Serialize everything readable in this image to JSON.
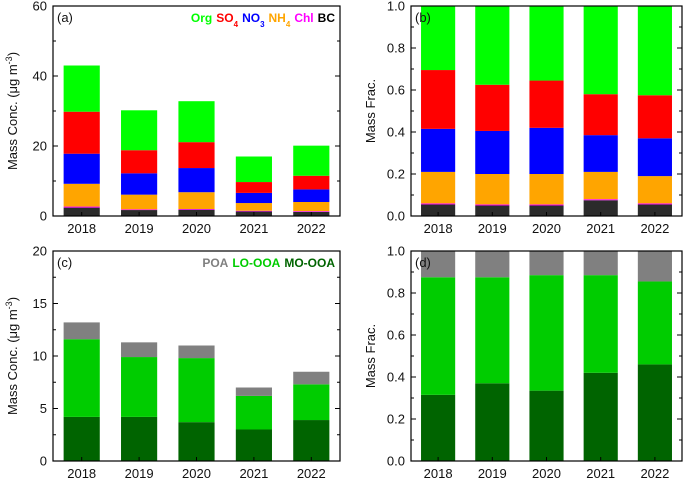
{
  "chart_data": [
    {
      "id": "a",
      "type": "bar",
      "stacked": true,
      "panel_label": "(a)",
      "categories": [
        "2018",
        "2019",
        "2020",
        "2021",
        "2022"
      ],
      "ylabel_main": "Mass Conc. (μg m",
      "ylabel_sup": "-3",
      "ylabel_end": ")",
      "ylim": [
        0,
        60
      ],
      "yticks": [
        0,
        20,
        40,
        60
      ],
      "legend_position": "top-right",
      "legend": [
        {
          "main": "Org",
          "sub": "",
          "color": "#00ff00"
        },
        {
          "main": "SO",
          "sub": "4",
          "color": "#ff0000"
        },
        {
          "main": "NO",
          "sub": "3",
          "color": "#0000ff"
        },
        {
          "main": "NH",
          "sub": "4",
          "color": "#ffa500"
        },
        {
          "main": "Chl",
          "sub": "",
          "color": "#ff00ff"
        },
        {
          "main": "BC",
          "sub": "",
          "color": "#000000"
        }
      ],
      "series": [
        {
          "color": "#2b2b2b",
          "values": [
            2.4,
            1.7,
            1.8,
            1.3,
            1.2
          ]
        },
        {
          "color": "#ff00ff",
          "values": [
            0.3,
            0.2,
            0.2,
            0.2,
            0.2
          ]
        },
        {
          "color": "#ffa500",
          "values": [
            6.5,
            4.2,
            4.8,
            2.2,
            2.6
          ]
        },
        {
          "color": "#0000ff",
          "values": [
            8.6,
            6.1,
            6.9,
            2.9,
            3.6
          ]
        },
        {
          "color": "#ff0000",
          "values": [
            12.0,
            6.6,
            7.4,
            3.1,
            3.9
          ]
        },
        {
          "color": "#00ff00",
          "values": [
            13.2,
            11.4,
            11.7,
            7.3,
            8.6
          ]
        }
      ]
    },
    {
      "id": "b",
      "type": "bar",
      "stacked": true,
      "panel_label": "(b)",
      "categories": [
        "2018",
        "2019",
        "2020",
        "2021",
        "2022"
      ],
      "ylabel_main": "Mass Frac.",
      "ylim": [
        0,
        1.0
      ],
      "yticks": [
        0.0,
        0.2,
        0.4,
        0.6,
        0.8,
        1.0
      ],
      "series": [
        {
          "color": "#2b2b2b",
          "values": [
            0.055,
            0.05,
            0.05,
            0.075,
            0.055
          ]
        },
        {
          "color": "#ff00ff",
          "values": [
            0.005,
            0.005,
            0.005,
            0.005,
            0.005
          ]
        },
        {
          "color": "#ffa500",
          "values": [
            0.15,
            0.145,
            0.145,
            0.13,
            0.13
          ]
        },
        {
          "color": "#0000ff",
          "values": [
            0.205,
            0.205,
            0.22,
            0.175,
            0.18
          ]
        },
        {
          "color": "#ff0000",
          "values": [
            0.28,
            0.22,
            0.225,
            0.195,
            0.205
          ]
        },
        {
          "color": "#00ff00",
          "values": [
            0.305,
            0.375,
            0.355,
            0.42,
            0.425
          ]
        }
      ]
    },
    {
      "id": "c",
      "type": "bar",
      "stacked": true,
      "panel_label": "(c)",
      "categories": [
        "2018",
        "2019",
        "2020",
        "2021",
        "2022"
      ],
      "ylabel_main": "Mass Conc. (μg m",
      "ylabel_sup": "-3",
      "ylabel_end": ")",
      "ylim": [
        0,
        20
      ],
      "yticks": [
        0,
        5,
        10,
        15,
        20
      ],
      "legend_position": "top-right",
      "legend": [
        {
          "main": "POA",
          "sub": "",
          "color": "#808080"
        },
        {
          "main": "LO-OOA",
          "sub": "",
          "color": "#00cc00"
        },
        {
          "main": "MO-OOA",
          "sub": "",
          "color": "#006400"
        }
      ],
      "series": [
        {
          "color": "#006400",
          "values": [
            4.2,
            4.2,
            3.7,
            3.0,
            3.9
          ]
        },
        {
          "color": "#00cc00",
          "values": [
            7.4,
            5.7,
            6.1,
            3.2,
            3.4
          ]
        },
        {
          "color": "#808080",
          "values": [
            1.6,
            1.4,
            1.2,
            0.8,
            1.2
          ]
        }
      ]
    },
    {
      "id": "d",
      "type": "bar",
      "stacked": true,
      "panel_label": "(d)",
      "categories": [
        "2018",
        "2019",
        "2020",
        "2021",
        "2022"
      ],
      "ylabel_main": "Mass Frac.",
      "ylim": [
        0,
        1.0
      ],
      "yticks": [
        0.0,
        0.2,
        0.4,
        0.6,
        0.8,
        1.0
      ],
      "series": [
        {
          "color": "#006400",
          "values": [
            0.315,
            0.37,
            0.335,
            0.42,
            0.46
          ]
        },
        {
          "color": "#00cc00",
          "values": [
            0.56,
            0.505,
            0.55,
            0.465,
            0.395
          ]
        },
        {
          "color": "#808080",
          "values": [
            0.125,
            0.125,
            0.115,
            0.115,
            0.145
          ]
        }
      ]
    }
  ]
}
